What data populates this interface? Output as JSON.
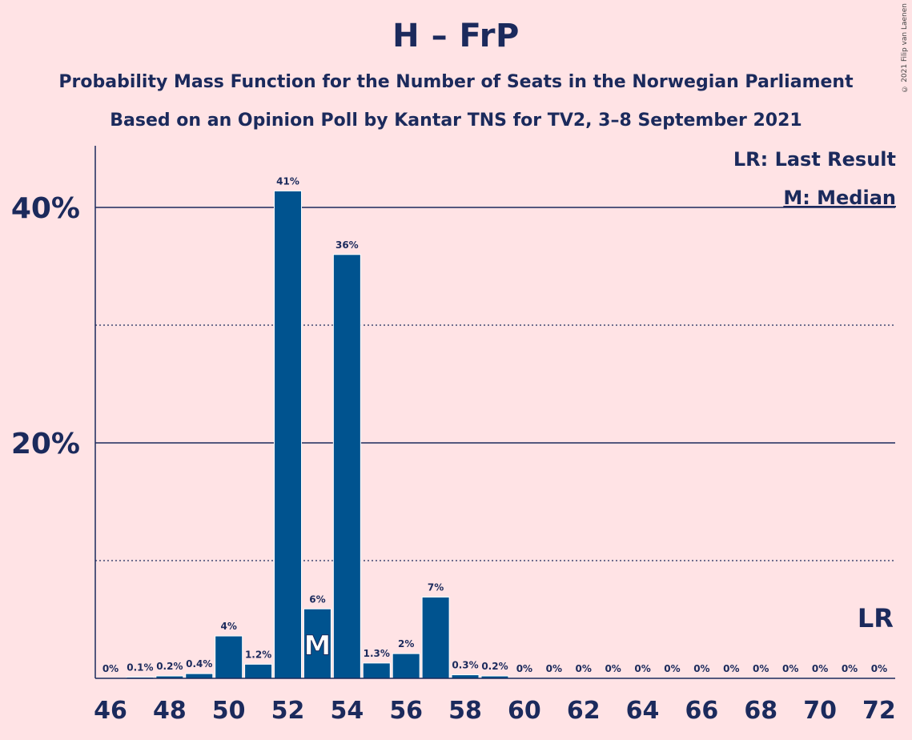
{
  "title": "H – FrP",
  "subtitle_line1": "Probability Mass Function for the Number of Seats in the Norwegian Parliament",
  "subtitle_line2": "Based on an Opinion Poll by Kantar TNS for TV2, 3–8 September 2021",
  "copyright": "© 2021 Filip van Laenen",
  "legend": {
    "last_result": "LR: Last Result",
    "median": "M: Median"
  },
  "colors": {
    "background": "#FFE3E5",
    "bar": "#00538F",
    "text": "#1B2A5C"
  },
  "chart_data": {
    "type": "bar",
    "x": [
      46,
      47,
      48,
      49,
      50,
      51,
      52,
      53,
      54,
      55,
      56,
      57,
      58,
      59,
      60,
      61,
      62,
      63,
      64,
      65,
      66,
      67,
      68,
      69,
      70,
      71,
      72
    ],
    "values": [
      0,
      0.1,
      0.2,
      0.4,
      3.6,
      1.2,
      41.4,
      5.9,
      36.0,
      1.3,
      2.1,
      6.9,
      0.3,
      0.2,
      0,
      0,
      0,
      0,
      0,
      0,
      0,
      0,
      0,
      0,
      0,
      0,
      0
    ],
    "labels": [
      "0%",
      "0.1%",
      "0.2%",
      "0.4%",
      "4%",
      "1.2%",
      "41%",
      "6%",
      "36%",
      "1.3%",
      "2%",
      "7%",
      "0.3%",
      "0.2%",
      "0%",
      "0%",
      "0%",
      "0%",
      "0%",
      "0%",
      "0%",
      "0%",
      "0%",
      "0%",
      "0%",
      "0%",
      "0%"
    ],
    "x_tick_labels": [
      "46",
      "48",
      "50",
      "52",
      "54",
      "56",
      "58",
      "60",
      "62",
      "64",
      "66",
      "68",
      "70",
      "72"
    ],
    "y_tick_labels": [
      "20%",
      "40%"
    ],
    "ylim": [
      0,
      45
    ],
    "gridlines_solid": [
      20,
      40
    ],
    "gridlines_dotted": [
      10,
      30
    ],
    "median_seat": 53,
    "median_marker": "M",
    "last_result_seat": 72,
    "last_result_marker": "LR"
  }
}
